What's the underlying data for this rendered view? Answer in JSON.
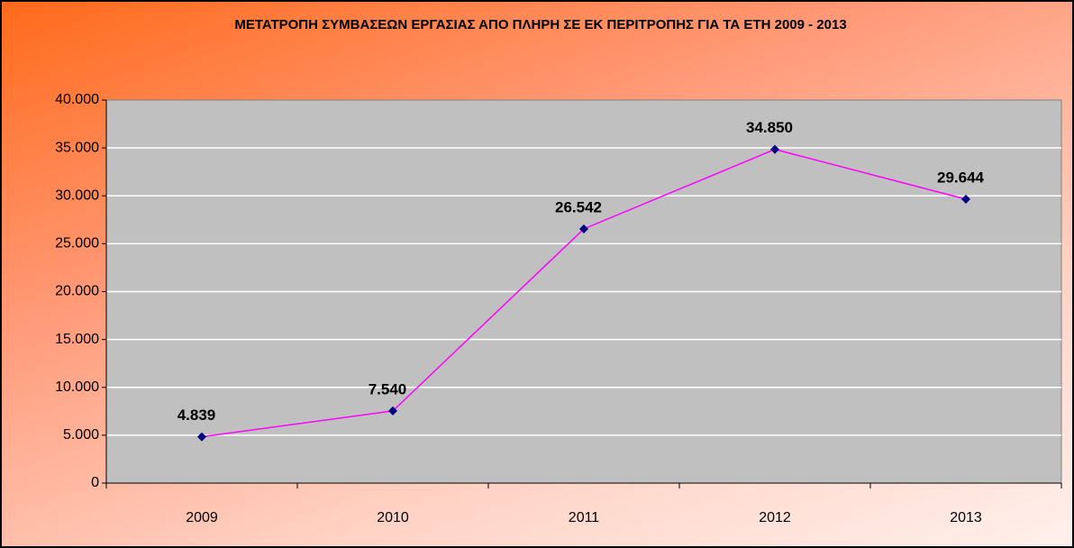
{
  "chart_data": {
    "type": "line",
    "title": "ΜΕΤΑΤΡΟΠΗ ΣΥΜΒΑΣΕΩΝ ΕΡΓΑΣΙΑΣ ΑΠΟ ΠΛΗΡΗ ΣΕ ΕΚ ΠΕΡΙΤΡΟΠΗΣ ΓΙΑ ΤΑ ΕΤΗ 2009 - 2013",
    "categories": [
      "2009",
      "2010",
      "2011",
      "2012",
      "2013"
    ],
    "values": [
      4839,
      7540,
      26542,
      34850,
      29644
    ],
    "value_labels": [
      "4.839",
      "7.540",
      "26.542",
      "34.850",
      "29.644"
    ],
    "color": "#ff00ff",
    "marker_color": "#000080",
    "label_color": "#ff0000",
    "ylim": [
      0,
      40000
    ],
    "yticks": [
      0,
      {
        "value": 5000,
        "label": "5.000"
      },
      {
        "value": 10000,
        "label": "10.000"
      },
      {
        "value": 15000,
        "label": "15.000"
      },
      {
        "value": 20000,
        "label": "20.000"
      },
      {
        "value": 25000,
        "label": "25.000"
      },
      {
        "value": 30000,
        "label": "30.000"
      },
      {
        "value": 35000,
        "label": "35.000"
      },
      {
        "value": 40000,
        "label": "40.000"
      }
    ],
    "grid": true
  }
}
